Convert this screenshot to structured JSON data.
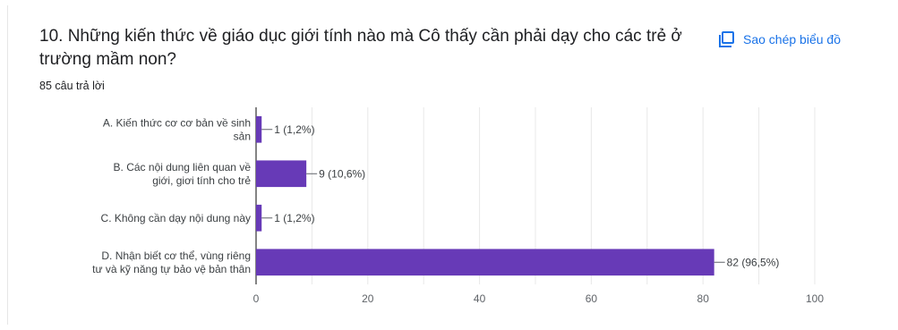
{
  "question": {
    "title": "10. Những kiến thức về giáo dục giới tính nào mà Cô thấy cần phải dạy cho các trẻ ở trường mầm non?",
    "responses": "85 câu trả lời"
  },
  "actions": {
    "copy_chart_label": "Sao chép biểu đồ",
    "copy_icon": "copy-icon"
  },
  "colors": {
    "bar": "#673ab7",
    "gridline": "#e8e8e8",
    "axis": "#333333",
    "link": "#1a73e8"
  },
  "chart_data": {
    "type": "bar",
    "orientation": "horizontal",
    "categories": [
      [
        "A. Kiến thức cơ cơ bản về sinh",
        "sản"
      ],
      [
        "B. Các nội dung liên quan về",
        "giới, giơi tính cho trẻ"
      ],
      [
        "C. Không cần dạy nội dung này"
      ],
      [
        "D. Nhận biết cơ thể, vùng riêng",
        "tư và kỹ năng tự bảo vệ bản thân"
      ]
    ],
    "values": [
      1,
      9,
      1,
      82
    ],
    "data_labels": [
      "1 (1,2%)",
      "9 (10,6%)",
      "1 (1,2%)",
      "82 (96,5%)"
    ],
    "xlim": [
      0,
      100
    ],
    "xticks": [
      0,
      20,
      40,
      60,
      80,
      100
    ],
    "grid": true,
    "legend": "none"
  }
}
